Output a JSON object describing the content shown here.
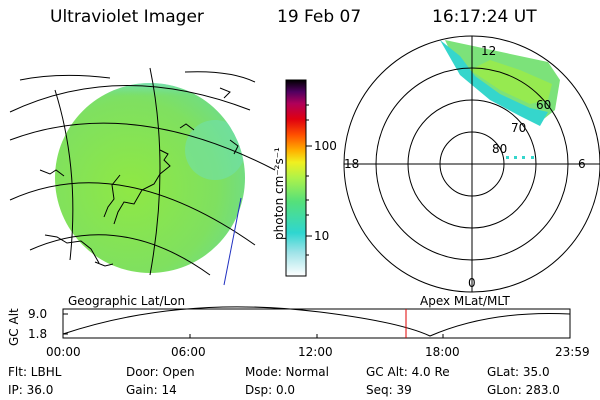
{
  "header": {
    "instrument": "Ultraviolet Imager",
    "date": "19 Feb 07",
    "time": "16:17:24 UT"
  },
  "colorbar": {
    "unit_label": "photon cm⁻²s⁻¹",
    "ticks": [
      "100",
      "10"
    ]
  },
  "polar": {
    "mlt_labels": [
      "12",
      "18",
      "6",
      "0"
    ],
    "lat_labels": [
      "60",
      "70",
      "80"
    ]
  },
  "timeline": {
    "y_label": "GC Alt",
    "y_ticks": [
      "9.0",
      "1.8"
    ],
    "left_caption": "Geographic Lat/Lon",
    "right_caption": "Apex MLat/MLT",
    "x_ticks": [
      "00:00",
      "06:00",
      "12:00",
      "18:00",
      "23:59"
    ]
  },
  "status": {
    "flt": "Flt: LBHL",
    "door": "Door: Open",
    "mode": "Mode: Normal",
    "gc_alt": "GC Alt: 4.0 Re",
    "glat": "GLat: 35.0",
    "ip": "IP: 36.0",
    "gain": "Gain: 14",
    "dsp": "Dsp:     0.0",
    "seq": "Seq: 39",
    "glon": "GLon: 283.0"
  }
}
